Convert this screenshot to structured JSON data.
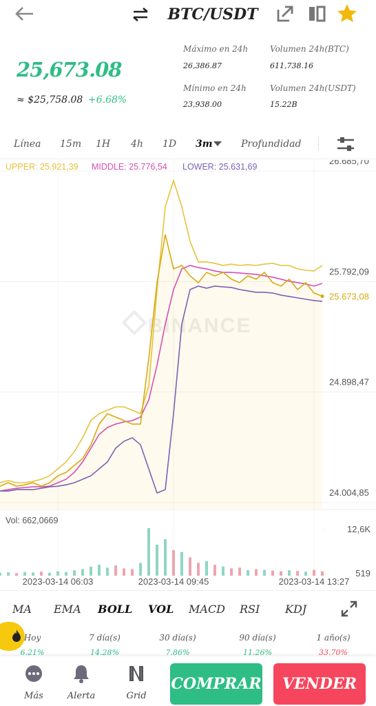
{
  "header": {
    "title": "BTC/USDT"
  },
  "ticker": {
    "price": "25,673.08",
    "approx": "≈ $25,758.08",
    "change": "+6.68%"
  },
  "stats": [
    {
      "label": "Máximo en 24h",
      "value": "26,386.87"
    },
    {
      "label": "Volumen 24h(BTC)",
      "value": "611,738.16"
    },
    {
      "label": "Mínimo en 24h",
      "value": "23,938.00"
    },
    {
      "label": "Volumen 24h(USDT)",
      "value": "15.22B"
    }
  ],
  "timeframes": [
    "Línea",
    "15m",
    "1H",
    "4h",
    "1D",
    "3m",
    "Profundidad"
  ],
  "chart_data": [
    {
      "type": "line",
      "legend": [
        "UPPER: 25.921,39",
        "MIDDLE: 25.776,54",
        "LOWER: 25.631,69"
      ],
      "watermark": "BINANCE",
      "categories": [
        null,
        null,
        null,
        null,
        null,
        null,
        null,
        "2023-03-14 06:03",
        null,
        null,
        null,
        null,
        null,
        null,
        null,
        null,
        null,
        null,
        null,
        null,
        null,
        "2023-03-14 09:45",
        null,
        null,
        null,
        null,
        null,
        null,
        null,
        null,
        null,
        null,
        null,
        null,
        null,
        null,
        null,
        null,
        "2023-03-14 13:27",
        null
      ],
      "series": [
        {
          "color": "#d6aa12",
          "values": [
            24138,
            24166,
            24138,
            24149,
            24166,
            24138,
            24166,
            24222,
            24250,
            24306,
            24361,
            24473,
            24640,
            24724,
            24696,
            24668,
            24640,
            24640,
            25170,
            25783,
            26173,
            25894,
            25922,
            25838,
            25783,
            25866,
            25838,
            25866,
            25811,
            25783,
            25838,
            25811,
            25866,
            25783,
            25755,
            25811,
            25727,
            25783,
            25699,
            25673.08
          ]
        },
        {
          "color": "#e5c23a",
          "values": [
            24166,
            24183,
            24166,
            24166,
            24177,
            24194,
            24222,
            24278,
            24334,
            24417,
            24529,
            24668,
            24724,
            24752,
            24779,
            24779,
            24752,
            24724,
            24947,
            25727,
            26396,
            26608,
            26396,
            26117,
            25950,
            25950,
            25939,
            25922,
            25933,
            25922,
            25928,
            25922,
            25933,
            25939,
            25922,
            25922,
            25894,
            25883,
            25877,
            25921.39
          ]
        },
        {
          "color": "#d44fb5",
          "values": [
            24099,
            24110,
            24121,
            24127,
            24133,
            24133,
            24138,
            24166,
            24194,
            24250,
            24334,
            24445,
            24556,
            24612,
            24640,
            24657,
            24668,
            24696,
            24835,
            25114,
            25448,
            25727,
            25894,
            25922,
            25905,
            25894,
            25877,
            25866,
            25866,
            25861,
            25855,
            25850,
            25838,
            25827,
            25811,
            25794,
            25783,
            25772,
            25755,
            25776.54
          ]
        },
        {
          "color": "#7a62b3",
          "values": [
            24099,
            24099,
            24110,
            24110,
            24110,
            24121,
            24133,
            24138,
            24149,
            24166,
            24194,
            24222,
            24278,
            24334,
            24445,
            24501,
            24529,
            24473,
            24278,
            24083,
            24110,
            24724,
            25448,
            25727,
            25755,
            25738,
            25755,
            25749,
            25744,
            25727,
            25716,
            25705,
            25705,
            25699,
            25682,
            25671,
            25660,
            25649,
            25638,
            25631.69
          ]
        }
      ],
      "ylim": [
        23955,
        26730
      ],
      "yticks": [
        {
          "value": 24004.85,
          "label": "24.004,85"
        },
        {
          "value": 24898.47,
          "label": "24.898,47"
        },
        {
          "value": 25792.09,
          "label": "25.792,09"
        },
        {
          "value": 26685.7,
          "label": "26.685,70"
        }
      ],
      "last_label": "25.673,08",
      "grid": true
    },
    {
      "type": "bar",
      "title": "Vol: 662,0669",
      "values": [
        800,
        900,
        700,
        1000,
        900,
        1100,
        800,
        1200,
        1000,
        1500,
        1800,
        2500,
        3000,
        2200,
        2800,
        2000,
        1800,
        3500,
        13000,
        8500,
        10000,
        7000,
        6500,
        5000,
        3500,
        4000,
        3000,
        2500,
        2000,
        2200,
        1500,
        1800,
        1600,
        1400,
        1200,
        1500,
        1300,
        1100,
        1600,
        1200
      ],
      "colors": [
        "#8fd6c2",
        "#eda5ad"
      ],
      "ylim": [
        0,
        13200
      ],
      "yticks": [
        519,
        {
          "value": 12600,
          "label": "12,6K"
        }
      ]
    }
  ],
  "indicators": [
    "MA",
    "EMA",
    "BOLL",
    "VOL",
    "MACD",
    "RSI",
    "KDJ"
  ],
  "performance": [
    {
      "period": "Hoy",
      "change": "6.21%",
      "color": "#2ebd85"
    },
    {
      "period": "7 día(s)",
      "change": "14.28%",
      "color": "#2ebd85"
    },
    {
      "period": "30 día(s)",
      "change": "7.86%",
      "color": "#2ebd85"
    },
    {
      "period": "90 día(s)",
      "change": "11.26%",
      "color": "#2ebd85"
    },
    {
      "period": "1 año(s)",
      "change": "33.70%",
      "color": "#f6465d"
    }
  ],
  "nav": [
    "Más",
    "Alerta",
    "Grid"
  ],
  "actions": [
    "COMPRAR",
    "VENDER"
  ]
}
